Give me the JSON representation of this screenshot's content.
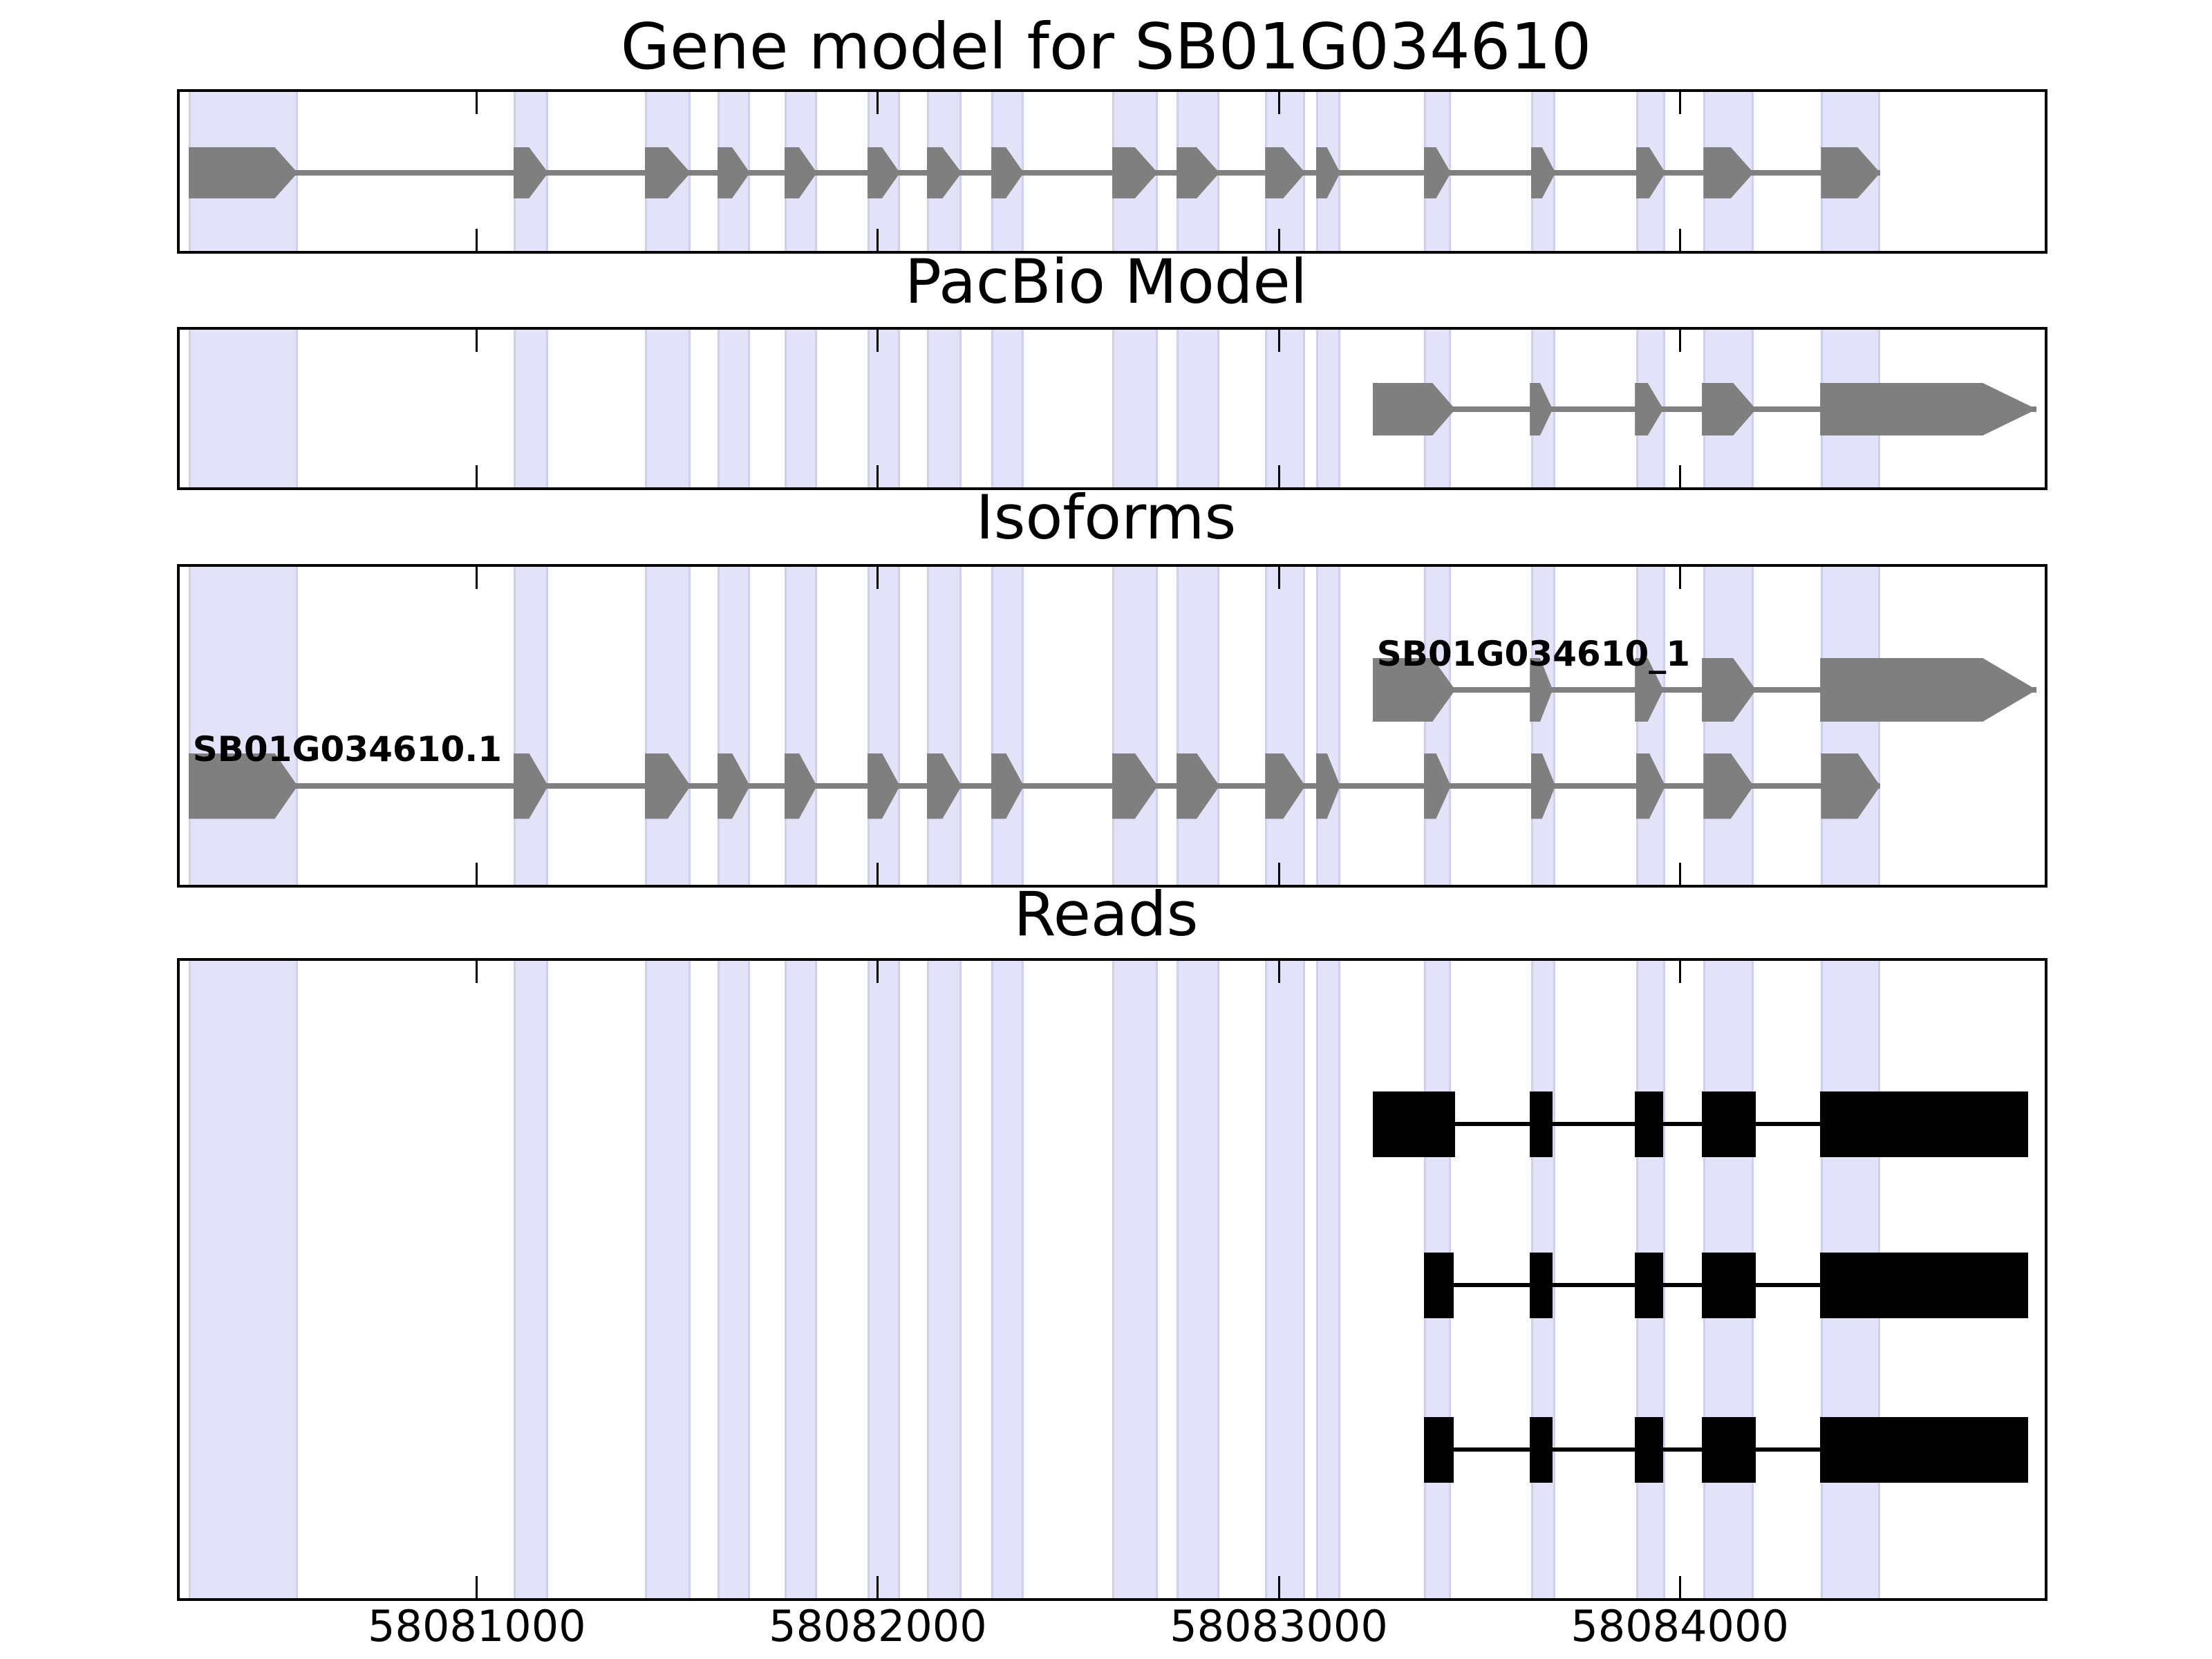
{
  "figure": {
    "title": "Gene model for SB01G034610",
    "panel_titles": {
      "gene_model": "Gene model for SB01G034610",
      "pacbio": "PacBio Model",
      "isoforms": "Isoforms",
      "reads": "Reads"
    }
  },
  "chart_data": {
    "type": "genome-browser",
    "title": "Gene model for SB01G034610",
    "xlim": [
      58080259,
      58084910
    ],
    "xticks": [
      58081000,
      58082000,
      58083000,
      58084000
    ],
    "xtick_labels": [
      "58081000",
      "58082000",
      "58083000",
      "58084000"
    ],
    "colors": {
      "model_fill": "#7f7f7f",
      "read_fill": "#000000",
      "highlight_fill": "#e2e2f9",
      "highlight_edge": "#cfcfef",
      "axis": "#000000"
    },
    "gene_model": {
      "name": "SB01G034610",
      "strand": "+",
      "exons": [
        [
          58080281,
          58080553
        ],
        [
          58081091,
          58081178
        ],
        [
          58081419,
          58081533
        ],
        [
          58081600,
          58081681
        ],
        [
          58081767,
          58081848
        ],
        [
          58081974,
          58082055
        ],
        [
          58082122,
          58082209
        ],
        [
          58082283,
          58082364
        ],
        [
          58082584,
          58082698
        ],
        [
          58082745,
          58082852
        ],
        [
          58082966,
          58083066
        ],
        [
          58083093,
          58083153
        ],
        [
          58083362,
          58083429
        ],
        [
          58083629,
          58083690
        ],
        [
          58083891,
          58083964
        ],
        [
          58084059,
          58084184
        ],
        [
          58084352,
          58084500
        ]
      ]
    },
    "pacbio_model": {
      "exons": [
        [
          58083234,
          58083440
        ],
        [
          58083626,
          58083683
        ],
        [
          58083888,
          58083959
        ],
        [
          58084055,
          58084190
        ],
        [
          58084350,
          58084890
        ]
      ]
    },
    "isoforms": [
      {
        "label": "SB01G034610_1",
        "exon_ref": "pacbio"
      },
      {
        "label": "SB01G034610.1",
        "exon_ref": "gene"
      }
    ],
    "reads": [
      {
        "blocks": [
          [
            58083234,
            58083440
          ],
          [
            58083626,
            58083683
          ],
          [
            58083888,
            58083959
          ],
          [
            58084055,
            58084190
          ],
          [
            58084350,
            58084868
          ]
        ]
      },
      {
        "blocks": [
          [
            58083362,
            58083436
          ],
          [
            58083626,
            58083683
          ],
          [
            58083888,
            58083959
          ],
          [
            58084055,
            58084190
          ],
          [
            58084350,
            58084868
          ]
        ]
      },
      {
        "blocks": [
          [
            58083362,
            58083436
          ],
          [
            58083626,
            58083683
          ],
          [
            58083888,
            58083959
          ],
          [
            58084055,
            58084190
          ],
          [
            58084350,
            58084868
          ]
        ]
      }
    ],
    "highlight_regions": [
      [
        58080281,
        58080553
      ],
      [
        58081091,
        58081178
      ],
      [
        58081419,
        58081533
      ],
      [
        58081600,
        58081681
      ],
      [
        58081767,
        58081848
      ],
      [
        58081974,
        58082055
      ],
      [
        58082122,
        58082209
      ],
      [
        58082283,
        58082364
      ],
      [
        58082584,
        58082698
      ],
      [
        58082745,
        58082852
      ],
      [
        58082966,
        58083066
      ],
      [
        58083093,
        58083153
      ],
      [
        58083362,
        58083429
      ],
      [
        58083629,
        58083690
      ],
      [
        58083891,
        58083964
      ],
      [
        58084059,
        58084184
      ],
      [
        58084352,
        58084500
      ]
    ]
  }
}
